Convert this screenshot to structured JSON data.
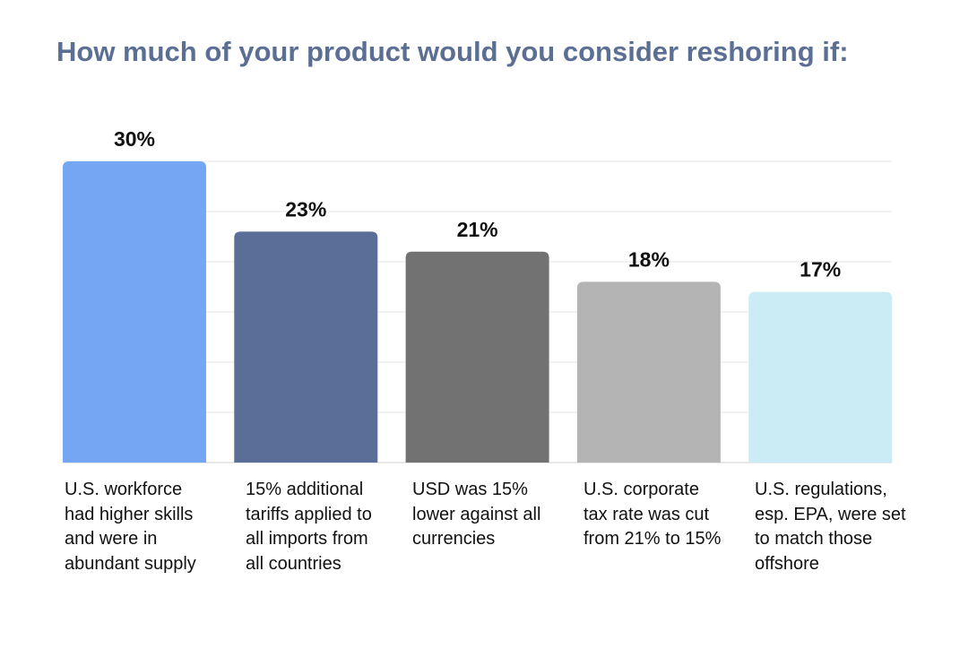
{
  "chart_data": {
    "type": "bar",
    "title": "How much of your product would you consider reshoring if:",
    "xlabel": "",
    "ylabel": "",
    "ylim": [
      0,
      30
    ],
    "grid": true,
    "categories": [
      "U.S. workforce had higher skills and were in abundant supply",
      "15% additional tariffs applied to all imports from all countries",
      "USD was 15% lower against all currencies",
      "U.S. corporate tax rate was cut from 21% to 15%",
      "U.S. regulations, esp. EPA, were set to match those offshore"
    ],
    "values": [
      30,
      23,
      21,
      18,
      17
    ],
    "value_labels": [
      "30%",
      "23%",
      "21%",
      "18%",
      "17%"
    ],
    "colors": [
      "#74a6f4",
      "#5a6e98",
      "#727272",
      "#b4b4b4",
      "#ccecf5"
    ]
  }
}
